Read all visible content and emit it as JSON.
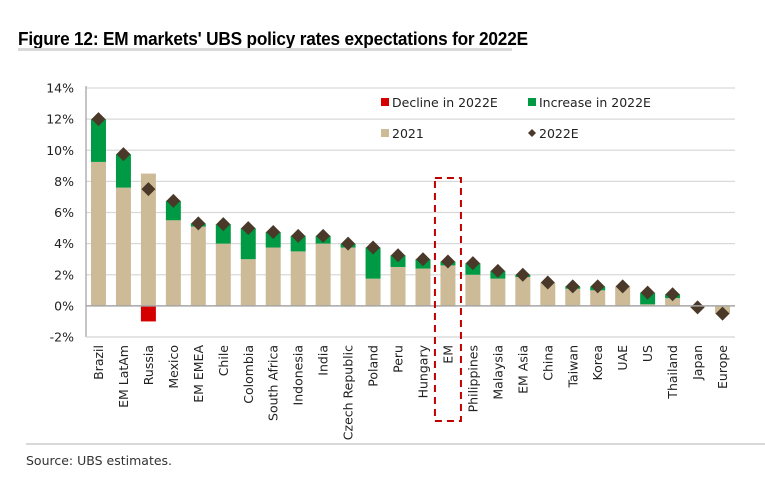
{
  "figure": {
    "title": "Figure 12: EM markets' UBS policy rates expectations for 2022E",
    "source": "Source: UBS estimates."
  },
  "colors": {
    "decline": "#d40000",
    "increase": "#009a44",
    "base2021": "#cdbb98",
    "marker2022E": "#4a3829",
    "highlight_box": "#c00000",
    "grid": "#d9d9d9",
    "axis": "#a6a6a6"
  },
  "chart_data": {
    "type": "bar",
    "title": "Figure 12: EM markets' UBS policy rates expectations for 2022E",
    "xlabel": "",
    "ylabel": "",
    "ylim": [
      -2,
      14
    ],
    "yticks": [
      -2,
      0,
      2,
      4,
      6,
      8,
      10,
      12,
      14
    ],
    "ytick_labels": [
      "-2%",
      "0%",
      "2%",
      "4%",
      "6%",
      "8%",
      "10%",
      "12%",
      "14%"
    ],
    "grid": true,
    "legend": {
      "placement": "top-right",
      "entries": [
        "Decline in 2022E",
        "Increase in 2022E",
        "2021",
        "2022E"
      ]
    },
    "highlighted_category": "EM",
    "categories": [
      "Brazil",
      "EM LatAm",
      "Russia",
      "Mexico",
      "EM EMEA",
      "Chile",
      "Colombia",
      "South Africa",
      "Indonesia",
      "India",
      "Czech Republic",
      "Poland",
      "Peru",
      "Hungary",
      "EM",
      "Philippines",
      "Malaysia",
      "EM Asia",
      "China",
      "Taiwan",
      "Korea",
      "UAE",
      "US",
      "Thailand",
      "Japan",
      "Europe"
    ],
    "series": [
      {
        "name": "2021",
        "type": "bar",
        "values": [
          9.25,
          7.6,
          8.5,
          5.5,
          5.1,
          4.0,
          3.0,
          3.75,
          3.5,
          4.0,
          3.75,
          1.75,
          2.5,
          2.4,
          2.6,
          2.0,
          1.75,
          1.85,
          1.5,
          1.1,
          1.0,
          1.25,
          0.1,
          0.5,
          -0.1,
          -0.5
        ]
      },
      {
        "name": "2022E",
        "type": "marker",
        "values": [
          12.0,
          9.75,
          7.5,
          6.75,
          5.3,
          5.25,
          5.0,
          4.75,
          4.5,
          4.5,
          4.0,
          3.75,
          3.25,
          3.0,
          2.85,
          2.75,
          2.25,
          2.0,
          1.5,
          1.25,
          1.25,
          1.25,
          0.85,
          0.75,
          -0.1,
          -0.5
        ]
      },
      {
        "name": "Increase in 2022E",
        "type": "bar",
        "values": [
          2.75,
          2.15,
          0,
          1.25,
          0.2,
          1.25,
          2.0,
          1.0,
          1.0,
          0.5,
          0.25,
          2.0,
          0.75,
          0.6,
          0.25,
          0.75,
          0.5,
          0.15,
          0,
          0.15,
          0.25,
          0,
          0.75,
          0.25,
          0,
          0
        ]
      },
      {
        "name": "Decline in 2022E",
        "type": "bar",
        "values": [
          0,
          0,
          -1.0,
          0,
          0,
          0,
          0,
          0,
          0,
          0,
          0,
          0,
          0,
          0,
          0,
          0,
          0,
          0,
          0,
          0,
          0,
          0,
          0,
          0,
          0,
          0
        ]
      }
    ]
  }
}
